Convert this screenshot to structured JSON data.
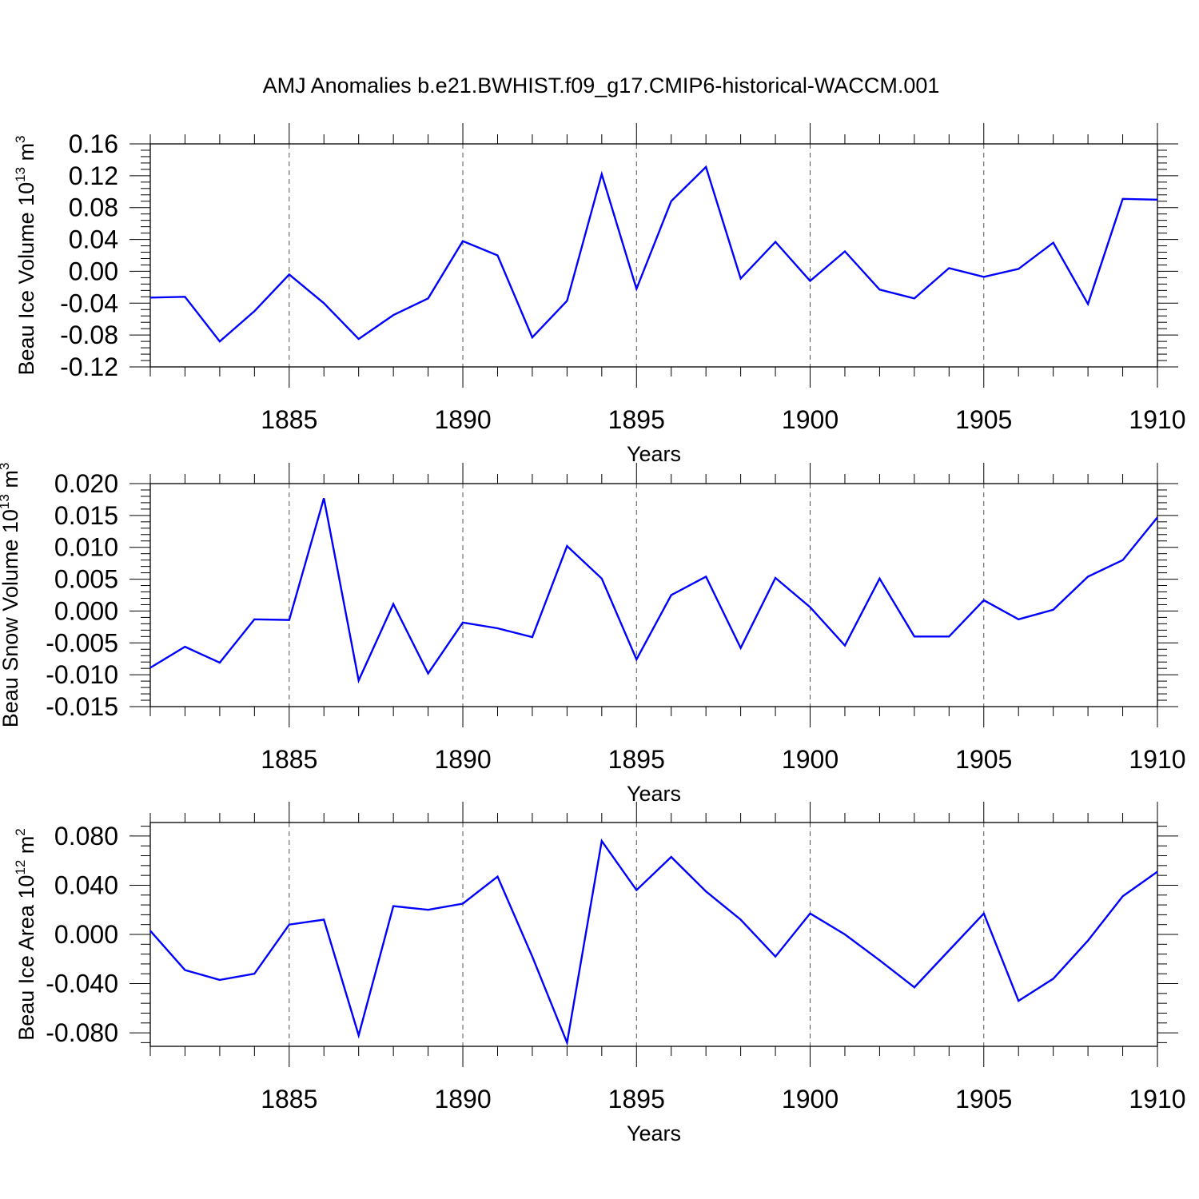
{
  "title": "AMJ Anomalies b.e21.BWHIST.f09_g17.CMIP6-historical-WACCM.001",
  "chart_data": [
    {
      "type": "line",
      "ylabel": {
        "main": "Beau Ice Volume 10",
        "exp": "13",
        "unit": " m",
        "unit_exp": "3"
      },
      "xlabel": "Years",
      "x": [
        1881,
        1882,
        1883,
        1884,
        1885,
        1886,
        1887,
        1888,
        1889,
        1890,
        1891,
        1892,
        1893,
        1894,
        1895,
        1896,
        1897,
        1898,
        1899,
        1900,
        1901,
        1902,
        1903,
        1904,
        1905,
        1906,
        1907,
        1908,
        1909,
        1910
      ],
      "values": [
        -0.033,
        -0.032,
        -0.088,
        -0.05,
        -0.004,
        -0.04,
        -0.085,
        -0.055,
        -0.034,
        0.038,
        0.02,
        -0.083,
        -0.037,
        0.122,
        -0.022,
        0.088,
        0.131,
        -0.009,
        0.037,
        -0.012,
        0.025,
        -0.023,
        -0.034,
        0.004,
        -0.007,
        0.003,
        0.036,
        -0.041,
        0.091,
        0.09
      ],
      "ylim": [
        -0.12,
        0.16
      ],
      "yticks": [
        "0.16",
        "0.12",
        "0.08",
        "0.04",
        "0.00",
        "-0.04",
        "-0.08",
        "-0.12"
      ],
      "ytick_values": [
        0.16,
        0.12,
        0.08,
        0.04,
        0.0,
        -0.04,
        -0.08,
        -0.12
      ],
      "yminor_step": 0.008,
      "xlim": [
        1881,
        1910
      ],
      "xticks": [
        "1885",
        "1890",
        "1895",
        "1900",
        "1905",
        "1910"
      ],
      "xtick_values": [
        1885,
        1890,
        1895,
        1900,
        1905,
        1910
      ],
      "grid": "vertical dashed at major x ticks",
      "line_color": "#0000ff"
    },
    {
      "type": "line",
      "ylabel": {
        "main": "Beau Snow Volume 10",
        "exp": "13",
        "unit": " m",
        "unit_exp": "3"
      },
      "xlabel": "Years",
      "x": [
        1881,
        1882,
        1883,
        1884,
        1885,
        1886,
        1887,
        1888,
        1889,
        1890,
        1891,
        1892,
        1893,
        1894,
        1895,
        1896,
        1897,
        1898,
        1899,
        1900,
        1901,
        1902,
        1903,
        1904,
        1905,
        1906,
        1907,
        1908,
        1909,
        1910
      ],
      "values": [
        -0.0089,
        -0.0056,
        -0.0081,
        -0.0013,
        -0.0014,
        0.0177,
        -0.0109,
        0.0011,
        -0.0098,
        -0.0018,
        -0.0027,
        -0.0041,
        0.0102,
        0.0051,
        -0.0076,
        0.0025,
        0.0054,
        -0.0058,
        0.0052,
        0.0006,
        -0.0054,
        0.0051,
        -0.004,
        -0.004,
        0.0017,
        -0.0013,
        0.0002,
        0.0054,
        0.008,
        0.0147
      ],
      "ylim": [
        -0.015,
        0.02
      ],
      "yticks": [
        "0.020",
        "0.015",
        "0.010",
        "0.005",
        "0.000",
        "-0.005",
        "-0.010",
        "-0.015"
      ],
      "ytick_values": [
        0.02,
        0.015,
        0.01,
        0.005,
        0.0,
        -0.005,
        -0.01,
        -0.015
      ],
      "yminor_step": 0.001,
      "xlim": [
        1881,
        1910
      ],
      "xticks": [
        "1885",
        "1890",
        "1895",
        "1900",
        "1905",
        "1910"
      ],
      "xtick_values": [
        1885,
        1890,
        1895,
        1900,
        1905,
        1910
      ],
      "grid": "vertical dashed at major x ticks",
      "line_color": "#0000ff"
    },
    {
      "type": "line",
      "ylabel": {
        "main": "Beau Ice Area 10",
        "exp": "12",
        "unit": " m",
        "unit_exp": "2"
      },
      "xlabel": "Years",
      "x": [
        1881,
        1882,
        1883,
        1884,
        1885,
        1886,
        1887,
        1888,
        1889,
        1890,
        1891,
        1892,
        1893,
        1894,
        1895,
        1896,
        1897,
        1898,
        1899,
        1900,
        1901,
        1902,
        1903,
        1904,
        1905,
        1906,
        1907,
        1908,
        1909,
        1910
      ],
      "values": [
        0.003,
        -0.029,
        -0.037,
        -0.032,
        0.008,
        0.012,
        -0.082,
        0.023,
        0.02,
        0.025,
        0.047,
        -0.018,
        -0.088,
        0.076,
        0.036,
        0.063,
        0.035,
        0.012,
        -0.018,
        0.017,
        0.0,
        -0.021,
        -0.043,
        -0.013,
        0.017,
        -0.054,
        -0.036,
        -0.005,
        0.031,
        0.051
      ],
      "ylim": [
        -0.091,
        0.091
      ],
      "yticks": [
        "0.080",
        "0.040",
        "0.000",
        "-0.040",
        "-0.080"
      ],
      "ytick_values": [
        0.08,
        0.04,
        0.0,
        -0.04,
        -0.08
      ],
      "yminor_step": 0.008,
      "xlim": [
        1881,
        1910
      ],
      "xticks": [
        "1885",
        "1890",
        "1895",
        "1900",
        "1905",
        "1910"
      ],
      "xtick_values": [
        1885,
        1890,
        1895,
        1900,
        1905,
        1910
      ],
      "grid": "vertical dashed at major x ticks",
      "line_color": "#0000ff"
    }
  ]
}
